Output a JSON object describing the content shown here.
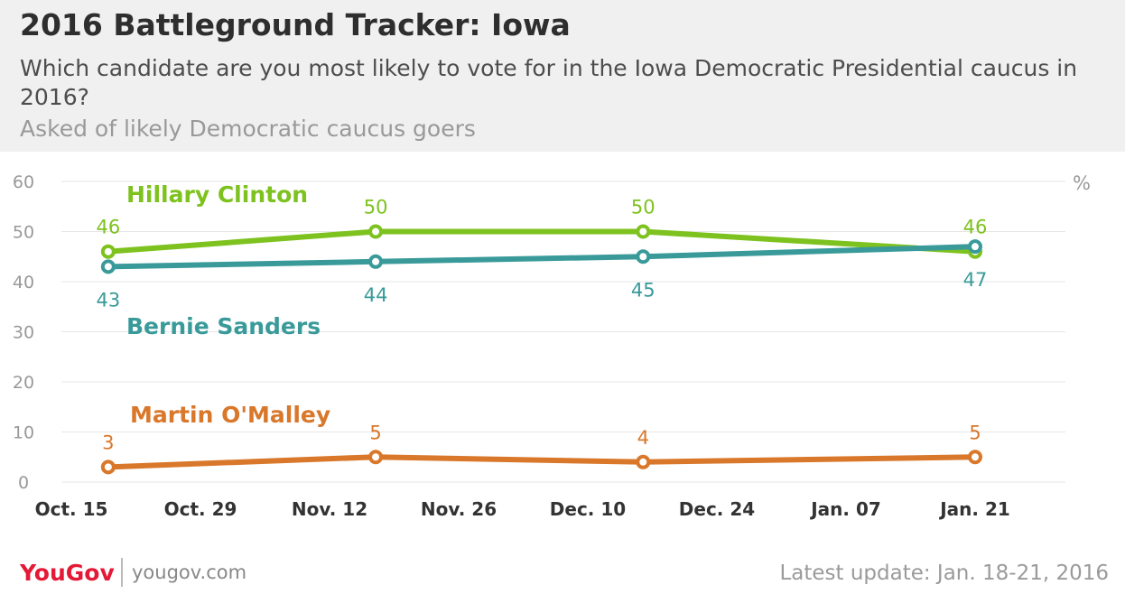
{
  "header": {
    "title": "2016 Battleground Tracker: Iowa",
    "subtitle": "Which candidate are you most likely to vote for in the Iowa Democratic Presidential caucus in 2016?",
    "note": "Asked of likely Democratic caucus goers"
  },
  "footer": {
    "logo": "YouGov",
    "url": "yougov.com",
    "update": "Latest update: Jan. 18-21, 2016"
  },
  "chart_data": {
    "type": "line",
    "unit_label": "%",
    "ylim": [
      0,
      60
    ],
    "yticks": [
      0,
      10,
      20,
      30,
      40,
      50,
      60
    ],
    "x_ticks": [
      "Oct. 15",
      "Oct. 29",
      "Nov. 12",
      "Nov. 26",
      "Dec. 10",
      "Dec. 24",
      "Jan. 07",
      "Jan. 21"
    ],
    "x": [
      "Oct. 19",
      "Nov. 17",
      "Dec. 16",
      "Jan. 21"
    ],
    "grid": "horizontal",
    "series": [
      {
        "name": "Hillary Clinton",
        "color": "#7dc21e",
        "values": [
          46,
          50,
          50,
          46
        ]
      },
      {
        "name": "Bernie Sanders",
        "color": "#3a9a9a",
        "values": [
          43,
          44,
          45,
          47
        ]
      },
      {
        "name": "Martin O'Malley",
        "color": "#d9772a",
        "values": [
          3,
          5,
          4,
          5
        ]
      }
    ]
  }
}
